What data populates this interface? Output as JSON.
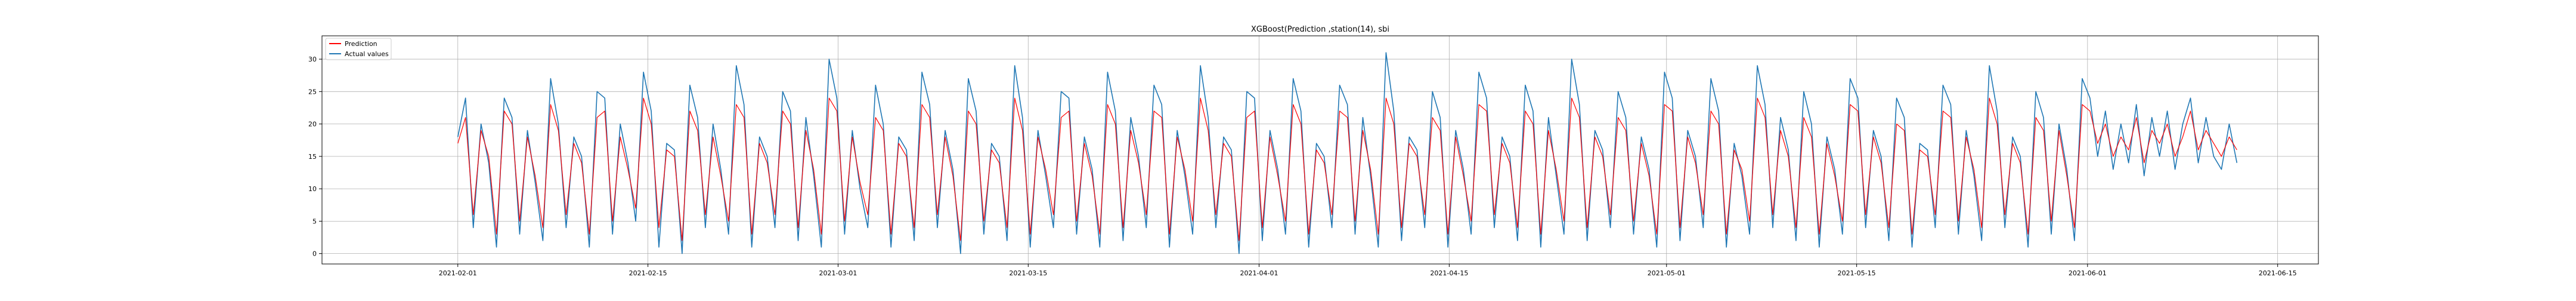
{
  "chart_data": {
    "type": "line",
    "title": "XGBoost(Prediction ,station(14), sbi",
    "xlabel": "",
    "ylabel": "",
    "x_range": [
      "2021-01-22",
      "2021-06-18"
    ],
    "y_range": [
      -1.6,
      33.6
    ],
    "grid": true,
    "legend_position": "top-left",
    "x_ticks": [
      "2021-02-01",
      "2021-02-15",
      "2021-03-01",
      "2021-03-15",
      "2021-04-01",
      "2021-04-15",
      "2021-05-01",
      "2021-05-15",
      "2021-06-01",
      "2021-06-15"
    ],
    "y_ticks": [
      0,
      5,
      10,
      15,
      20,
      25,
      30
    ],
    "data_start": "2021-02-01",
    "data_end": "2021-06-12",
    "series": [
      {
        "name": "Prediction",
        "color": "#ff0000",
        "description": "sampled every ~half day, values in bikes",
        "values": [
          17,
          21,
          6,
          19,
          15,
          3,
          22,
          20,
          5,
          18,
          12,
          4,
          23,
          19,
          6,
          17,
          14,
          3,
          21,
          22,
          5,
          18,
          13,
          7,
          24,
          20,
          4,
          16,
          15,
          2,
          22,
          19,
          6,
          18,
          12,
          5,
          23,
          21,
          3,
          17,
          14,
          6,
          22,
          20,
          4,
          19,
          13,
          3,
          24,
          22,
          5,
          18,
          11,
          6,
          21,
          19,
          3,
          17,
          15,
          4,
          23,
          21,
          6,
          18,
          12,
          2,
          22,
          20,
          5,
          16,
          14,
          4,
          24,
          19,
          3,
          18,
          13,
          6,
          21,
          22,
          5,
          17,
          12,
          3,
          23,
          20,
          4,
          19,
          14,
          6,
          22,
          21,
          3,
          18,
          13,
          5,
          24,
          19,
          6,
          17,
          15,
          2,
          21,
          22,
          4,
          18,
          12,
          5,
          23,
          20,
          3,
          16,
          14,
          6,
          22,
          21,
          5,
          19,
          13,
          3,
          24,
          20,
          4,
          17,
          15,
          6,
          21,
          19,
          3,
          18,
          12,
          5,
          23,
          22,
          6,
          17,
          14,
          4,
          22,
          20,
          3,
          19,
          13,
          5,
          24,
          21,
          4,
          18,
          15,
          6,
          21,
          19,
          5,
          17,
          12,
          3,
          23,
          22,
          4,
          18,
          14,
          6,
          22,
          20,
          3,
          16,
          13,
          5,
          24,
          21,
          6,
          19,
          15,
          4,
          21,
          18,
          3,
          17,
          12,
          5,
          23,
          22,
          6,
          18,
          14,
          4,
          20,
          19,
          3,
          16,
          15,
          6,
          22,
          21,
          5,
          18,
          13,
          4,
          24,
          20,
          6,
          17,
          14,
          3,
          21,
          19,
          5,
          19,
          12,
          4,
          23,
          22,
          17,
          20,
          15,
          18,
          16,
          21,
          14,
          19,
          17,
          20,
          15,
          18,
          22,
          16,
          19,
          17,
          15,
          18,
          16
        ]
      },
      {
        "name": "Actual values",
        "color": "#1f77b4",
        "description": "sampled every ~half day, values in bikes",
        "values": [
          18,
          24,
          4,
          20,
          14,
          1,
          24,
          21,
          3,
          19,
          11,
          2,
          27,
          20,
          4,
          18,
          15,
          1,
          25,
          24,
          3,
          20,
          14,
          5,
          28,
          22,
          1,
          17,
          16,
          0,
          26,
          21,
          4,
          20,
          13,
          3,
          29,
          23,
          1,
          18,
          15,
          4,
          25,
          22,
          2,
          21,
          12,
          1,
          30,
          24,
          3,
          19,
          10,
          4,
          26,
          20,
          1,
          18,
          16,
          2,
          28,
          23,
          4,
          19,
          13,
          0,
          27,
          22,
          3,
          17,
          15,
          2,
          29,
          21,
          1,
          19,
          12,
          4,
          25,
          24,
          3,
          18,
          13,
          1,
          28,
          22,
          2,
          21,
          15,
          4,
          26,
          23,
          1,
          19,
          12,
          3,
          29,
          21,
          4,
          18,
          16,
          0,
          25,
          24,
          2,
          19,
          13,
          3,
          27,
          22,
          1,
          17,
          15,
          4,
          26,
          23,
          3,
          21,
          12,
          1,
          31,
          22,
          2,
          18,
          16,
          4,
          25,
          21,
          1,
          19,
          13,
          3,
          28,
          24,
          4,
          18,
          15,
          2,
          26,
          22,
          1,
          21,
          12,
          3,
          30,
          23,
          2,
          19,
          16,
          4,
          25,
          21,
          3,
          18,
          13,
          1,
          28,
          24,
          2,
          19,
          15,
          4,
          27,
          22,
          1,
          17,
          12,
          3,
          29,
          23,
          4,
          21,
          16,
          2,
          25,
          20,
          1,
          18,
          13,
          3,
          27,
          24,
          4,
          19,
          15,
          2,
          24,
          21,
          1,
          17,
          16,
          4,
          26,
          23,
          3,
          19,
          12,
          2,
          29,
          22,
          4,
          18,
          15,
          1,
          25,
          21,
          3,
          20,
          13,
          2,
          27,
          24,
          15,
          22,
          13,
          20,
          14,
          23,
          12,
          21,
          15,
          22,
          13,
          20,
          24,
          14,
          21,
          15,
          13,
          20,
          14
        ]
      }
    ]
  }
}
